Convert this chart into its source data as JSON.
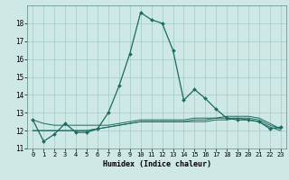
{
  "xlabel": "Humidex (Indice chaleur)",
  "bg_color": "#cde8e5",
  "grid_color": "#aacfcc",
  "line_color": "#1a6b60",
  "xlim": [
    -0.5,
    23.5
  ],
  "ylim": [
    11,
    19
  ],
  "yticks": [
    11,
    12,
    13,
    14,
    15,
    16,
    17,
    18
  ],
  "xticks": [
    0,
    1,
    2,
    3,
    4,
    5,
    6,
    7,
    8,
    9,
    10,
    11,
    12,
    13,
    14,
    15,
    16,
    17,
    18,
    19,
    20,
    21,
    22,
    23
  ],
  "series": [
    [
      12.6,
      11.4,
      11.8,
      12.4,
      11.9,
      11.9,
      12.1,
      13.0,
      14.5,
      16.3,
      18.6,
      18.2,
      18.0,
      16.5,
      13.7,
      14.3,
      13.8,
      13.2,
      12.7,
      12.6,
      12.6,
      12.5,
      12.1,
      12.2
    ],
    [
      12.0,
      12.0,
      12.0,
      12.0,
      12.0,
      12.0,
      12.1,
      12.2,
      12.3,
      12.4,
      12.5,
      12.5,
      12.5,
      12.5,
      12.5,
      12.5,
      12.5,
      12.6,
      12.6,
      12.7,
      12.7,
      12.6,
      12.3,
      12.1
    ],
    [
      12.0,
      12.0,
      12.0,
      12.0,
      12.0,
      12.0,
      12.1,
      12.2,
      12.3,
      12.4,
      12.5,
      12.5,
      12.5,
      12.5,
      12.5,
      12.6,
      12.6,
      12.7,
      12.8,
      12.8,
      12.8,
      12.7,
      12.4,
      12.1
    ],
    [
      12.6,
      12.4,
      12.3,
      12.3,
      12.3,
      12.3,
      12.3,
      12.3,
      12.4,
      12.5,
      12.6,
      12.6,
      12.6,
      12.6,
      12.6,
      12.7,
      12.7,
      12.7,
      12.7,
      12.7,
      12.6,
      12.5,
      12.2,
      12.0
    ]
  ]
}
